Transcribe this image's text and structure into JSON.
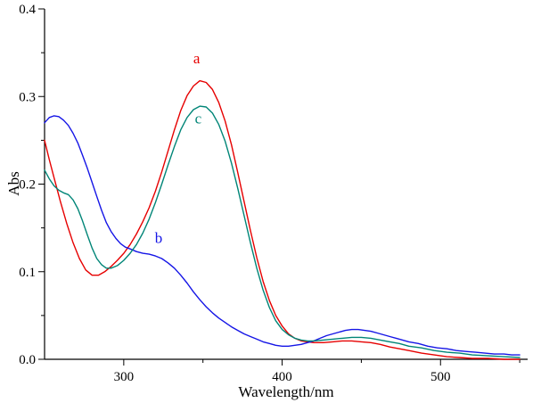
{
  "figure": {
    "background": "#ffffff",
    "axis_color": "#000000"
  },
  "chart_data": {
    "type": "line",
    "title": "",
    "xlabel": "Wavelength/nm",
    "ylabel": "Abs",
    "xlim": [
      250,
      555
    ],
    "ylim": [
      0,
      0.4
    ],
    "grid": false,
    "legend": "none (curves labeled inline: a, b, c)",
    "x_major_ticks": [
      300,
      400,
      500
    ],
    "x_tick_labels": [
      "300",
      "400",
      "500"
    ],
    "x_minor_ticks": [
      350,
      450,
      550
    ],
    "y_major_ticks": [
      0.0,
      0.1,
      0.2,
      0.3,
      0.4
    ],
    "y_tick_labels": [
      "0.0",
      "0.1",
      "0.2",
      "0.3",
      "0.4"
    ],
    "y_minor_ticks": [
      0.05,
      0.15,
      0.25,
      0.35
    ],
    "series": [
      {
        "name": "a",
        "color": "#e60000",
        "points": [
          [
            250,
            0.25
          ],
          [
            253,
            0.228
          ],
          [
            256,
            0.207
          ],
          [
            260,
            0.18
          ],
          [
            264,
            0.155
          ],
          [
            268,
            0.133
          ],
          [
            272,
            0.115
          ],
          [
            276,
            0.102
          ],
          [
            280,
            0.096
          ],
          [
            284,
            0.096
          ],
          [
            288,
            0.1
          ],
          [
            292,
            0.106
          ],
          [
            296,
            0.113
          ],
          [
            300,
            0.121
          ],
          [
            304,
            0.131
          ],
          [
            308,
            0.143
          ],
          [
            312,
            0.157
          ],
          [
            316,
            0.173
          ],
          [
            320,
            0.192
          ],
          [
            324,
            0.214
          ],
          [
            328,
            0.238
          ],
          [
            332,
            0.262
          ],
          [
            336,
            0.284
          ],
          [
            340,
            0.301
          ],
          [
            344,
            0.312
          ],
          [
            348,
            0.318
          ],
          [
            352,
            0.316
          ],
          [
            356,
            0.308
          ],
          [
            360,
            0.293
          ],
          [
            364,
            0.272
          ],
          [
            368,
            0.245
          ],
          [
            372,
            0.213
          ],
          [
            376,
            0.18
          ],
          [
            380,
            0.147
          ],
          [
            384,
            0.116
          ],
          [
            388,
            0.089
          ],
          [
            392,
            0.067
          ],
          [
            396,
            0.05
          ],
          [
            400,
            0.038
          ],
          [
            404,
            0.029
          ],
          [
            408,
            0.024
          ],
          [
            412,
            0.021
          ],
          [
            416,
            0.02
          ],
          [
            420,
            0.019
          ],
          [
            426,
            0.019
          ],
          [
            432,
            0.02
          ],
          [
            438,
            0.021
          ],
          [
            444,
            0.021
          ],
          [
            450,
            0.02
          ],
          [
            456,
            0.019
          ],
          [
            462,
            0.017
          ],
          [
            468,
            0.014
          ],
          [
            474,
            0.012
          ],
          [
            480,
            0.01
          ],
          [
            488,
            0.007
          ],
          [
            496,
            0.005
          ],
          [
            504,
            0.003
          ],
          [
            512,
            0.002
          ],
          [
            520,
            0.001
          ],
          [
            530,
            0.001
          ],
          [
            540,
            0.0
          ],
          [
            550,
            0.0
          ]
        ]
      },
      {
        "name": "b",
        "color": "#1515e6",
        "points": [
          [
            250,
            0.27
          ],
          [
            253,
            0.276
          ],
          [
            256,
            0.278
          ],
          [
            259,
            0.277
          ],
          [
            262,
            0.273
          ],
          [
            265,
            0.267
          ],
          [
            268,
            0.258
          ],
          [
            271,
            0.247
          ],
          [
            274,
            0.233
          ],
          [
            277,
            0.218
          ],
          [
            280,
            0.202
          ],
          [
            283,
            0.186
          ],
          [
            286,
            0.17
          ],
          [
            289,
            0.156
          ],
          [
            292,
            0.146
          ],
          [
            295,
            0.138
          ],
          [
            298,
            0.132
          ],
          [
            301,
            0.128
          ],
          [
            304,
            0.126
          ],
          [
            308,
            0.123
          ],
          [
            312,
            0.121
          ],
          [
            316,
            0.12
          ],
          [
            320,
            0.118
          ],
          [
            324,
            0.115
          ],
          [
            328,
            0.11
          ],
          [
            332,
            0.104
          ],
          [
            336,
            0.096
          ],
          [
            340,
            0.087
          ],
          [
            344,
            0.077
          ],
          [
            348,
            0.068
          ],
          [
            352,
            0.06
          ],
          [
            356,
            0.053
          ],
          [
            360,
            0.047
          ],
          [
            364,
            0.042
          ],
          [
            368,
            0.037
          ],
          [
            372,
            0.033
          ],
          [
            376,
            0.029
          ],
          [
            380,
            0.026
          ],
          [
            384,
            0.023
          ],
          [
            388,
            0.02
          ],
          [
            392,
            0.018
          ],
          [
            396,
            0.016
          ],
          [
            400,
            0.015
          ],
          [
            404,
            0.015
          ],
          [
            408,
            0.016
          ],
          [
            412,
            0.017
          ],
          [
            416,
            0.019
          ],
          [
            420,
            0.021
          ],
          [
            424,
            0.024
          ],
          [
            428,
            0.027
          ],
          [
            432,
            0.029
          ],
          [
            436,
            0.031
          ],
          [
            440,
            0.033
          ],
          [
            444,
            0.034
          ],
          [
            448,
            0.034
          ],
          [
            452,
            0.033
          ],
          [
            456,
            0.032
          ],
          [
            460,
            0.03
          ],
          [
            464,
            0.028
          ],
          [
            468,
            0.026
          ],
          [
            472,
            0.024
          ],
          [
            476,
            0.022
          ],
          [
            480,
            0.02
          ],
          [
            486,
            0.018
          ],
          [
            492,
            0.015
          ],
          [
            498,
            0.013
          ],
          [
            504,
            0.012
          ],
          [
            510,
            0.01
          ],
          [
            516,
            0.009
          ],
          [
            522,
            0.008
          ],
          [
            528,
            0.007
          ],
          [
            534,
            0.006
          ],
          [
            540,
            0.006
          ],
          [
            545,
            0.005
          ],
          [
            550,
            0.005
          ]
        ]
      },
      {
        "name": "c",
        "color": "#008577",
        "points": [
          [
            250,
            0.216
          ],
          [
            253,
            0.206
          ],
          [
            256,
            0.198
          ],
          [
            259,
            0.193
          ],
          [
            262,
            0.19
          ],
          [
            265,
            0.188
          ],
          [
            268,
            0.182
          ],
          [
            271,
            0.172
          ],
          [
            274,
            0.158
          ],
          [
            277,
            0.142
          ],
          [
            280,
            0.127
          ],
          [
            283,
            0.115
          ],
          [
            286,
            0.108
          ],
          [
            289,
            0.104
          ],
          [
            292,
            0.104
          ],
          [
            296,
            0.107
          ],
          [
            300,
            0.113
          ],
          [
            304,
            0.121
          ],
          [
            308,
            0.131
          ],
          [
            312,
            0.144
          ],
          [
            316,
            0.16
          ],
          [
            320,
            0.179
          ],
          [
            324,
            0.2
          ],
          [
            328,
            0.222
          ],
          [
            332,
            0.243
          ],
          [
            336,
            0.262
          ],
          [
            340,
            0.276
          ],
          [
            344,
            0.285
          ],
          [
            348,
            0.289
          ],
          [
            352,
            0.288
          ],
          [
            356,
            0.281
          ],
          [
            360,
            0.268
          ],
          [
            364,
            0.249
          ],
          [
            368,
            0.224
          ],
          [
            372,
            0.195
          ],
          [
            376,
            0.164
          ],
          [
            380,
            0.133
          ],
          [
            384,
            0.104
          ],
          [
            388,
            0.079
          ],
          [
            392,
            0.059
          ],
          [
            396,
            0.044
          ],
          [
            400,
            0.034
          ],
          [
            404,
            0.028
          ],
          [
            408,
            0.024
          ],
          [
            412,
            0.022
          ],
          [
            416,
            0.021
          ],
          [
            420,
            0.021
          ],
          [
            426,
            0.022
          ],
          [
            432,
            0.023
          ],
          [
            438,
            0.024
          ],
          [
            444,
            0.025
          ],
          [
            450,
            0.025
          ],
          [
            456,
            0.024
          ],
          [
            462,
            0.022
          ],
          [
            468,
            0.02
          ],
          [
            474,
            0.018
          ],
          [
            480,
            0.015
          ],
          [
            488,
            0.013
          ],
          [
            496,
            0.01
          ],
          [
            504,
            0.008
          ],
          [
            512,
            0.007
          ],
          [
            520,
            0.005
          ],
          [
            530,
            0.004
          ],
          [
            540,
            0.003
          ],
          [
            550,
            0.002
          ]
        ]
      }
    ],
    "annotations": [
      {
        "text": "a",
        "x": 346,
        "y": 0.338,
        "color": "#e60000"
      },
      {
        "text": "b",
        "x": 322,
        "y": 0.133,
        "color": "#1515e6"
      },
      {
        "text": "c",
        "x": 347,
        "y": 0.269,
        "color": "#008577"
      }
    ]
  }
}
